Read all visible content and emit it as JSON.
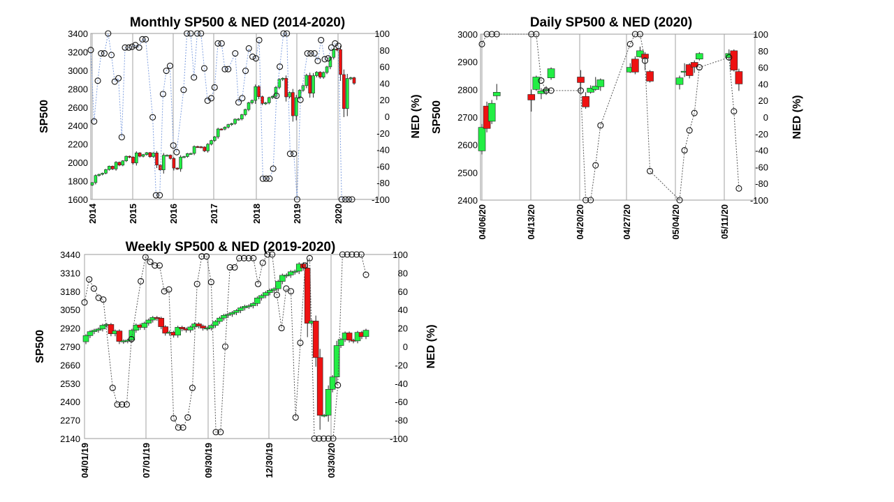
{
  "chart_data": [
    {
      "type": "candlestick",
      "title": "Monthly SP500 & NED (2014-2020)",
      "ylabel": "SP500",
      "y2label": "NED (%)",
      "ylim": [
        1600,
        3400
      ],
      "y_ticks": [
        "1600",
        "1800",
        "2000",
        "2200",
        "2400",
        "2600",
        "2800",
        "3000",
        "3200",
        "3400"
      ],
      "y2lim": [
        -100,
        100
      ],
      "y2_ticks": [
        "-100",
        "-80",
        "-60",
        "-40",
        "-20",
        "0",
        "20",
        "40",
        "60",
        "80",
        "100"
      ],
      "x_ticks": [
        "2014",
        "2015",
        "2016",
        "2017",
        "2018",
        "2019",
        "2020"
      ],
      "grid": "vertical",
      "line_color": "#7f9fe0",
      "up_color": "#22ee44",
      "down_color": "#ee1111",
      "closes": [
        1782,
        1859,
        1872,
        1884,
        1924,
        1960,
        1930,
        2003,
        1972,
        2018,
        2068,
        2059,
        1995,
        2105,
        2068,
        2086,
        2107,
        2063,
        2104,
        1973,
        1920,
        2079,
        2080,
        2044,
        1940,
        1932,
        2060,
        2065,
        2097,
        2099,
        2174,
        2171,
        2168,
        2126,
        2199,
        2239,
        2279,
        2364,
        2363,
        2384,
        2412,
        2423,
        2470,
        2472,
        2519,
        2575,
        2648,
        2674,
        2824,
        2714,
        2641,
        2648,
        2705,
        2718,
        2816,
        2902,
        2914,
        2712,
        2760,
        2507,
        2704,
        2784,
        2834,
        2946,
        2752,
        2942,
        2980,
        2926,
        2977,
        3038,
        3141,
        3231,
        3226,
        2954,
        2585,
        2912,
        2920,
        2860
      ],
      "ned_points": [
        [
          0.0,
          80
        ],
        [
          0.08,
          -6
        ],
        [
          0.17,
          43
        ],
        [
          0.25,
          76
        ],
        [
          0.33,
          76
        ],
        [
          0.42,
          100
        ],
        [
          0.5,
          74
        ],
        [
          0.58,
          42
        ],
        [
          0.67,
          46
        ],
        [
          0.75,
          -25
        ],
        [
          0.83,
          83
        ],
        [
          0.92,
          83
        ],
        [
          1.0,
          84
        ],
        [
          1.08,
          86
        ],
        [
          1.17,
          83
        ],
        [
          1.25,
          93
        ],
        [
          1.33,
          93
        ],
        [
          1.5,
          -1
        ],
        [
          1.58,
          -95
        ],
        [
          1.67,
          -95
        ],
        [
          1.75,
          27
        ],
        [
          1.83,
          55
        ],
        [
          1.92,
          61
        ],
        [
          2.0,
          -35
        ],
        [
          2.08,
          -43
        ],
        [
          2.25,
          32
        ],
        [
          2.33,
          100
        ],
        [
          2.42,
          100
        ],
        [
          2.5,
          47
        ],
        [
          2.58,
          100
        ],
        [
          2.67,
          100
        ],
        [
          2.75,
          58
        ],
        [
          2.83,
          19
        ],
        [
          2.92,
          22
        ],
        [
          3.0,
          35
        ],
        [
          3.08,
          88
        ],
        [
          3.17,
          88
        ],
        [
          3.25,
          57
        ],
        [
          3.33,
          57
        ],
        [
          3.5,
          76
        ],
        [
          3.58,
          17
        ],
        [
          3.67,
          22
        ],
        [
          3.75,
          55
        ],
        [
          3.83,
          82
        ],
        [
          3.92,
          72
        ],
        [
          4.0,
          70
        ],
        [
          4.08,
          92
        ],
        [
          4.17,
          -75
        ],
        [
          4.25,
          -75
        ],
        [
          4.33,
          -75
        ],
        [
          4.42,
          -63
        ],
        [
          4.5,
          25
        ],
        [
          4.58,
          60
        ],
        [
          4.67,
          100
        ],
        [
          4.75,
          100
        ],
        [
          4.83,
          -45
        ],
        [
          4.92,
          -45
        ],
        [
          5.0,
          -100
        ],
        [
          5.08,
          20
        ],
        [
          5.25,
          76
        ],
        [
          5.33,
          76
        ],
        [
          5.42,
          76
        ],
        [
          5.5,
          67
        ],
        [
          5.58,
          92
        ],
        [
          5.67,
          69
        ],
        [
          5.75,
          70
        ],
        [
          5.83,
          83
        ],
        [
          5.92,
          88
        ],
        [
          6.0,
          85
        ],
        [
          6.08,
          -100
        ],
        [
          6.17,
          -100
        ],
        [
          6.25,
          -100
        ],
        [
          6.33,
          -100
        ]
      ]
    },
    {
      "type": "candlestick",
      "title": "Daily SP500 & NED (2020)",
      "ylabel": "SP500",
      "y2label": "NED (%)",
      "ylim": [
        2400,
        3000
      ],
      "y_ticks": [
        "2400",
        "2500",
        "2600",
        "2700",
        "2800",
        "2900",
        "3000"
      ],
      "y2lim": [
        -100,
        100
      ],
      "y2_ticks": [
        "-100",
        "-80",
        "-60",
        "-40",
        "-20",
        "0",
        "20",
        "40",
        "60",
        "80",
        "100"
      ],
      "x_ticks": [
        "04/06/20",
        "04/13/20",
        "04/20/20",
        "04/27/20",
        "05/04/20",
        "05/11/20"
      ],
      "grid": "vertical",
      "line_color": "#555555",
      "up_color": "#22ee44",
      "down_color": "#ee1111",
      "candles": [
        [
          0,
          2578,
          2663,
          2565,
          2675
        ],
        [
          1,
          2740,
          2659,
          2645,
          2756
        ],
        [
          2,
          2685,
          2750,
          2675,
          2762
        ],
        [
          3,
          2777,
          2790,
          2762,
          2820
        ],
        [
          10,
          2782,
          2762,
          2720,
          2800
        ],
        [
          11,
          2800,
          2845,
          2795,
          2850
        ],
        [
          12,
          2785,
          2795,
          2765,
          2805
        ],
        [
          13,
          2795,
          2800,
          2780,
          2812
        ],
        [
          14,
          2842,
          2875,
          2835,
          2880
        ],
        [
          20,
          2845,
          2825,
          2795,
          2870
        ],
        [
          21,
          2775,
          2737,
          2730,
          2790
        ],
        [
          22,
          2790,
          2805,
          2785,
          2815
        ],
        [
          23,
          2800,
          2812,
          2795,
          2845
        ],
        [
          24,
          2810,
          2835,
          2795,
          2840
        ],
        [
          30,
          2863,
          2880,
          2860,
          2895
        ],
        [
          31,
          2910,
          2863,
          2855,
          2920
        ],
        [
          32,
          2918,
          2940,
          2915,
          2955
        ],
        [
          33,
          2928,
          2912,
          2870,
          2935
        ],
        [
          34,
          2865,
          2830,
          2825,
          2870
        ],
        [
          40,
          2818,
          2842,
          2800,
          2850
        ],
        [
          41,
          2865,
          2866,
          2845,
          2895
        ],
        [
          42,
          2890,
          2850,
          2840,
          2895
        ],
        [
          43,
          2898,
          2881,
          2860,
          2905
        ],
        [
          44,
          2910,
          2930,
          2905,
          2935
        ],
        [
          50,
          2915,
          2930,
          2905,
          2945
        ],
        [
          51,
          2940,
          2870,
          2865,
          2945
        ],
        [
          52,
          2865,
          2820,
          2795,
          2875
        ]
      ],
      "ned_points": [
        [
          0,
          88
        ],
        [
          1,
          100
        ],
        [
          2,
          100
        ],
        [
          3,
          100
        ],
        [
          10,
          100
        ],
        [
          11,
          100
        ],
        [
          12,
          44
        ],
        [
          13,
          32
        ],
        [
          14,
          32
        ],
        [
          20,
          32
        ],
        [
          21,
          -100
        ],
        [
          22,
          -100
        ],
        [
          23,
          -58
        ],
        [
          24,
          -10
        ],
        [
          30,
          88
        ],
        [
          31,
          100
        ],
        [
          32,
          100
        ],
        [
          33,
          68
        ],
        [
          34,
          -65
        ],
        [
          40,
          -100
        ],
        [
          41,
          -40
        ],
        [
          42,
          -16
        ],
        [
          43,
          5
        ],
        [
          44,
          60
        ],
        [
          50,
          72
        ],
        [
          51,
          7
        ],
        [
          52,
          -86
        ]
      ]
    },
    {
      "type": "candlestick",
      "title": "Weekly SP500 & NED (2019-2020)",
      "ylabel": "SP500",
      "y2label": "NED (%)",
      "ylim": [
        2140,
        3440
      ],
      "y_ticks": [
        "2140",
        "2270",
        "2400",
        "2530",
        "2660",
        "2790",
        "2920",
        "3050",
        "3180",
        "3310",
        "3440"
      ],
      "y2lim": [
        -100,
        100
      ],
      "y2_ticks": [
        "-100",
        "-80",
        "-60",
        "-40",
        "-20",
        "0",
        "20",
        "40",
        "60",
        "80",
        "100"
      ],
      "x_ticks": [
        "04/01/19",
        "07/01/19",
        "09/30/19",
        "12/30/19",
        "03/30/20"
      ],
      "grid": "vertical",
      "line_color": "#555555",
      "up_color": "#22ee44",
      "down_color": "#ee1111",
      "closes": [
        2867,
        2895,
        2905,
        2914,
        2940,
        2946,
        2880,
        2900,
        2826,
        2830,
        2835,
        2905,
        2942,
        2925,
        2955,
        2977,
        2995,
        2990,
        2930,
        2884,
        2891,
        2870,
        2926,
        2915,
        2906,
        2928,
        2950,
        2935,
        2920,
        2921,
        2939,
        2967,
        2991,
        3010,
        3018,
        3030,
        3044,
        3063,
        3074,
        3078,
        3094,
        3133,
        3150,
        3171,
        3187,
        3198,
        3250,
        3293,
        3295,
        3318,
        3322,
        3373,
        3345,
        2954,
        2970,
        2712,
        2304,
        2305,
        2488,
        2575,
        2797,
        2840,
        2886,
        2835,
        2830,
        2890,
        2860,
        2905
      ],
      "ned_points": [
        [
          0,
          48
        ],
        [
          1,
          73
        ],
        [
          2,
          63
        ],
        [
          3,
          53
        ],
        [
          4,
          51
        ],
        [
          6,
          -45
        ],
        [
          7,
          -63
        ],
        [
          8,
          -63
        ],
        [
          9,
          -63
        ],
        [
          10,
          8
        ],
        [
          12,
          71
        ],
        [
          13,
          97
        ],
        [
          14,
          92
        ],
        [
          15,
          88
        ],
        [
          16,
          88
        ],
        [
          17,
          60
        ],
        [
          18,
          62
        ],
        [
          19,
          -78
        ],
        [
          20,
          -88
        ],
        [
          21,
          -88
        ],
        [
          22,
          -77
        ],
        [
          23,
          -45
        ],
        [
          24,
          68
        ],
        [
          25,
          98
        ],
        [
          26,
          98
        ],
        [
          27,
          70
        ],
        [
          28,
          -93
        ],
        [
          29,
          -93
        ],
        [
          30,
          0
        ],
        [
          31,
          86
        ],
        [
          32,
          86
        ],
        [
          33,
          96
        ],
        [
          34,
          96
        ],
        [
          35,
          96
        ],
        [
          36,
          96
        ],
        [
          37,
          68
        ],
        [
          38,
          91
        ],
        [
          39,
          100
        ],
        [
          40,
          100
        ],
        [
          41,
          56
        ],
        [
          42,
          20
        ],
        [
          43,
          63
        ],
        [
          44,
          60
        ],
        [
          45,
          -77
        ],
        [
          46,
          4
        ],
        [
          47,
          88
        ],
        [
          48,
          96
        ],
        [
          49,
          -100
        ],
        [
          50,
          -100
        ],
        [
          51,
          -100
        ],
        [
          52,
          -100
        ],
        [
          53,
          -100
        ],
        [
          54,
          -42
        ],
        [
          55,
          100
        ],
        [
          56,
          100
        ],
        [
          57,
          100
        ],
        [
          58,
          100
        ],
        [
          59,
          100
        ],
        [
          60,
          78
        ]
      ]
    }
  ]
}
